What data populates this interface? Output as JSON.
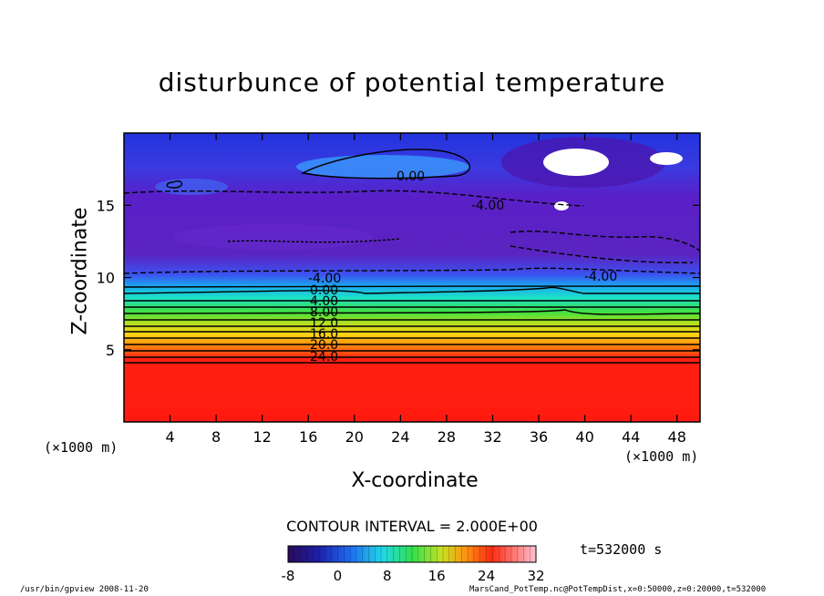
{
  "chart_data": {
    "type": "heatmap",
    "title": "disturbunce of potential temperature",
    "xlabel": "X-coordinate",
    "ylabel": "Z-coordinate",
    "x_unit": "(×1000 m)",
    "xlim": [
      0,
      50
    ],
    "ylim": [
      0,
      20
    ],
    "x_ticks": [
      4,
      8,
      12,
      16,
      20,
      24,
      28,
      32,
      36,
      40,
      44,
      48
    ],
    "y_ticks": [
      5,
      10,
      15
    ],
    "contour_interval": "CONTOUR INTERVAL = 2.000E+00",
    "contour_labels": [
      "0.00",
      "-4.00",
      "-4.00",
      "0.00",
      "4.00",
      "8.00",
      "12.0",
      "16.0",
      "20.0",
      "24.0",
      "-4.00"
    ],
    "colorbar": {
      "min": -8,
      "max": 32,
      "ticks": [
        -8,
        0,
        8,
        16,
        24,
        32
      ]
    },
    "time_label": "t=532000 s",
    "colors": {
      "low": "#1a0a6e",
      "mid": "#2fe05a",
      "high": "#ff1a10"
    }
  },
  "footer": {
    "left": "/usr/bin/gpview   2008-11-20",
    "right": "MarsCand_PotTemp.nc@PotTempDist,x=0:50000,z=0:20000,t=532000"
  }
}
